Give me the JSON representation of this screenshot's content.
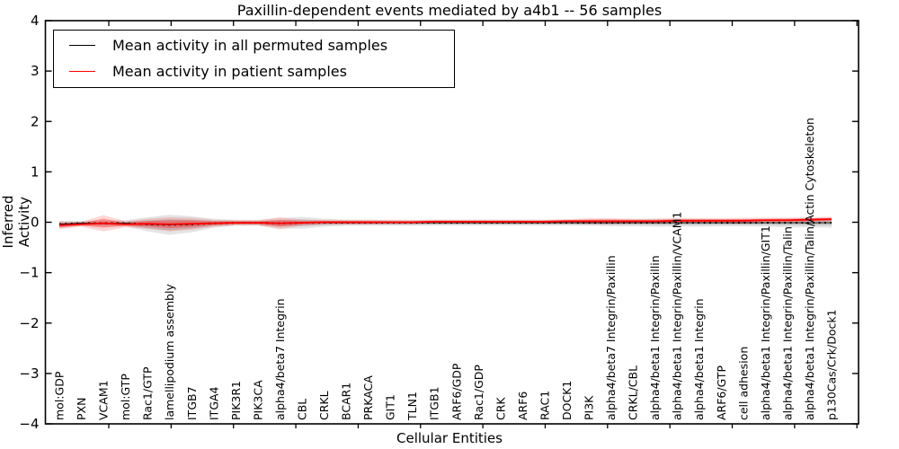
{
  "chart_data": {
    "type": "line",
    "title": "Paxillin-dependent events mediated by a4b1 -- 56 samples",
    "xlabel": "Cellular Entities",
    "ylabel": "Inferred Activity",
    "ylim": [
      -4,
      4
    ],
    "yticks": [
      4,
      3,
      2,
      1,
      0,
      -1,
      -2,
      -3,
      -4
    ],
    "ytick_labels": [
      "4",
      "3",
      "2",
      "1",
      "0",
      "−1",
      "−2",
      "−3",
      "−4"
    ],
    "grid": false,
    "legend_position": "upper left",
    "colors": {
      "permuted_line": "#000000",
      "patient_line": "#ff0000",
      "permuted_band": "rgba(0,0,0,0.10)",
      "patient_band": "rgba(255,0,0,0.16)"
    },
    "categories": [
      "mol:GDP",
      "PXN",
      "VCAM1",
      "mol:GTP",
      "Rac1/GTP",
      "lamellipodium assembly",
      "ITGB7",
      "ITGA4",
      "PIK3R1",
      "PIK3CA",
      "alpha4/beta7 Integrin",
      "CBL",
      "CRKL",
      "BCAR1",
      "PRKACA",
      "GIT1",
      "TLN1",
      "ITGB1",
      "ARF6/GDP",
      "Rac1/GDP",
      "CRK",
      "ARF6",
      "RAC1",
      "DOCK1",
      "PI3K",
      "alpha4/beta7 Integrin/Paxillin",
      "CRKL/CBL",
      "alpha4/beta1 Integrin/Paxillin",
      "alpha4/beta1 Integrin/Paxillin/VCAM1",
      "alpha4/beta1 Integrin",
      "ARF6/GTP",
      "cell adhesion",
      "alpha4/beta1 Integrin/Paxillin/GIT1",
      "alpha4/beta1 Integrin/Paxillin/Talin",
      "alpha4/beta1 Integrin/Paxillin/Talin/Actin Cytoskeleton",
      "p130Cas/Crk/Dock1"
    ],
    "series": [
      {
        "name": "Mean activity in all permuted samples",
        "color": "#000000",
        "style": "dotted",
        "mean": [
          -0.04,
          -0.02,
          -0.02,
          -0.02,
          -0.04,
          -0.05,
          -0.04,
          -0.02,
          -0.01,
          -0.01,
          -0.02,
          -0.01,
          -0.01,
          -0.01,
          -0.01,
          -0.01,
          -0.01,
          -0.01,
          -0.01,
          -0.01,
          -0.01,
          -0.01,
          -0.01,
          -0.01,
          -0.01,
          -0.01,
          -0.01,
          -0.01,
          -0.01,
          -0.01,
          -0.01,
          -0.01,
          -0.01,
          -0.01,
          -0.01,
          -0.01
        ],
        "std": [
          0.07,
          0.05,
          0.06,
          0.06,
          0.14,
          0.2,
          0.16,
          0.09,
          0.06,
          0.06,
          0.1,
          0.12,
          0.08,
          0.06,
          0.06,
          0.06,
          0.06,
          0.06,
          0.06,
          0.06,
          0.06,
          0.06,
          0.06,
          0.06,
          0.06,
          0.07,
          0.07,
          0.08,
          0.08,
          0.08,
          0.07,
          0.07,
          0.08,
          0.09,
          0.09,
          0.1
        ]
      },
      {
        "name": "Mean activity in patient samples",
        "color": "#ff0000",
        "style": "solid",
        "mean": [
          -0.06,
          -0.04,
          -0.02,
          -0.04,
          -0.03,
          -0.04,
          -0.03,
          -0.02,
          -0.01,
          -0.01,
          -0.02,
          -0.01,
          0.0,
          0.0,
          0.0,
          0.0,
          0.0,
          0.01,
          0.01,
          0.01,
          0.01,
          0.01,
          0.01,
          0.02,
          0.02,
          0.02,
          0.02,
          0.02,
          0.03,
          0.03,
          0.03,
          0.03,
          0.04,
          0.04,
          0.05,
          0.06
        ],
        "std": [
          0.08,
          0.05,
          0.16,
          0.06,
          0.1,
          0.14,
          0.12,
          0.07,
          0.05,
          0.05,
          0.12,
          0.06,
          0.05,
          0.05,
          0.05,
          0.04,
          0.04,
          0.04,
          0.04,
          0.04,
          0.04,
          0.04,
          0.04,
          0.04,
          0.06,
          0.06,
          0.05,
          0.05,
          0.05,
          0.05,
          0.05,
          0.06,
          0.05,
          0.05,
          0.05,
          0.05
        ]
      }
    ]
  }
}
